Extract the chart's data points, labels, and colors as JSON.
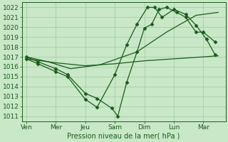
{
  "bg_color": "#c8e8c8",
  "grid_color": "#a0c8a0",
  "line_color": "#1a5c1a",
  "xlabel": "Pression niveau de la mer( hPa )",
  "xtick_labels": [
    "Ven",
    "Mer",
    "Jeu",
    "Sam",
    "Dim",
    "Lun",
    "Mar"
  ],
  "xtick_positions": [
    0,
    2,
    4,
    6,
    8,
    10,
    12
  ],
  "xlim": [
    -0.3,
    13.5
  ],
  "ylim": [
    1010.5,
    1022.5
  ],
  "yticks": [
    1011,
    1012,
    1013,
    1014,
    1015,
    1016,
    1017,
    1018,
    1019,
    1020,
    1021,
    1022
  ],
  "line1_x": [
    0,
    0.8,
    2.0,
    2.8,
    4.0,
    4.8,
    5.8,
    6.2,
    6.8,
    7.5,
    8.0,
    8.5,
    9.0,
    9.5,
    10.2,
    10.8,
    11.5,
    12.0,
    12.8
  ],
  "line1_y": [
    1017.0,
    1016.5,
    1015.8,
    1015.2,
    1013.3,
    1012.8,
    1011.8,
    1011.0,
    1014.4,
    1017.5,
    1019.9,
    1020.3,
    1021.8,
    1022.0,
    1021.5,
    1021.0,
    1019.5,
    1019.5,
    1018.5
  ],
  "line1_markers": [
    true,
    true,
    true,
    true,
    true,
    true,
    true,
    true,
    true,
    true,
    true,
    true,
    true,
    true,
    true,
    true,
    true,
    true,
    true
  ],
  "line2_x": [
    0,
    0.8,
    2.0,
    2.8,
    4.0,
    4.8,
    6.0,
    6.8,
    7.5,
    8.2,
    8.7,
    9.2,
    10.0,
    10.8,
    11.5,
    12.2,
    12.8
  ],
  "line2_y": [
    1016.8,
    1016.3,
    1015.5,
    1015.0,
    1012.7,
    1011.9,
    1015.2,
    1018.2,
    1020.3,
    1022.0,
    1022.0,
    1021.0,
    1021.8,
    1021.3,
    1020.2,
    1018.8,
    1017.2
  ],
  "line2_markers": [
    true,
    true,
    true,
    true,
    true,
    true,
    true,
    true,
    true,
    true,
    true,
    true,
    true,
    true,
    true,
    true,
    true
  ],
  "line3_x": [
    0,
    2.0,
    4.0,
    6.0,
    8.0,
    10.0,
    12.0,
    13.0
  ],
  "line3_y": [
    1016.8,
    1016.4,
    1016.1,
    1016.3,
    1016.6,
    1016.8,
    1017.0,
    1017.1
  ],
  "line4_x": [
    0,
    1.5,
    3.0,
    5.0,
    7.5,
    9.5,
    11.5,
    13.0
  ],
  "line4_y": [
    1017.0,
    1016.5,
    1015.8,
    1016.2,
    1017.5,
    1019.5,
    1021.2,
    1021.5
  ]
}
